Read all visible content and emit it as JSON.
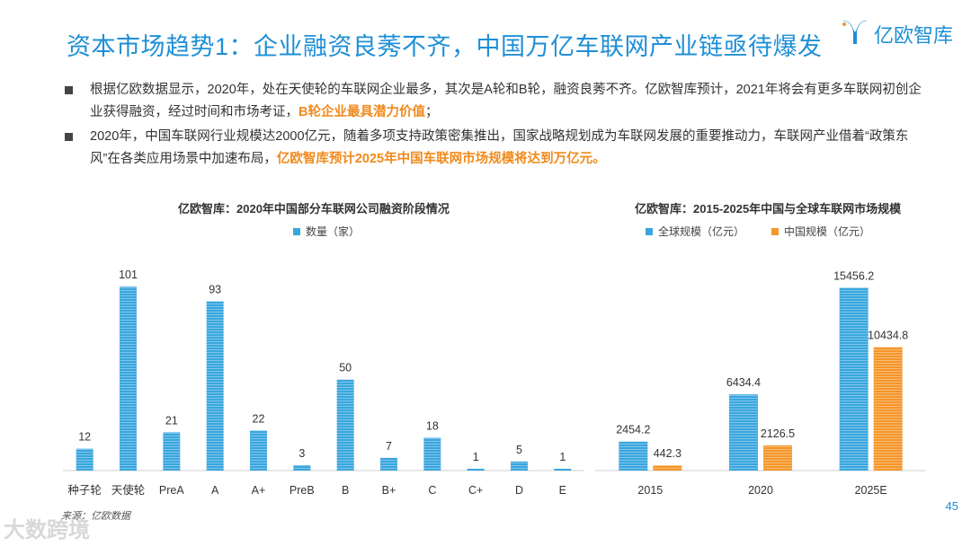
{
  "header": {
    "title": "资本市场趋势1：企业融资良莠不齐，中国万亿车联网产业链亟待爆发",
    "logo_text": "亿欧智库"
  },
  "bullets": [
    {
      "pre": "根据亿欧数据显示，2020年，处在天使轮的车联网企业最多，其次是A轮和B轮，融资良莠不齐。亿欧智库预计，2021年将会有更多车联网初创企业获得融资，经过时间和市场考证，",
      "highlight": "B轮企业最具潜力价值",
      "post": "；"
    },
    {
      "pre": "2020年，中国车联网行业规模达2000亿元，随着多项支持政策密集推出，国家战略规划成为车联网发展的重要推动力，车联网产业借着“政策东风”在各类应用场景中加速布局，",
      "highlight": "亿欧智库预计2025年中国车联网市场规模将达到万亿元。",
      "post": ""
    }
  ],
  "chart_data": [
    {
      "type": "bar",
      "title": "亿欧智库：2020年中国部分车联网公司融资阶段情况",
      "categories": [
        "种子轮",
        "天使轮",
        "PreA",
        "A",
        "A+",
        "PreB",
        "B",
        "B+",
        "C",
        "C+",
        "D",
        "E"
      ],
      "series": [
        {
          "name": "数量（家）",
          "values": [
            12,
            101,
            21,
            93,
            22,
            3,
            50,
            7,
            18,
            1,
            5,
            1
          ],
          "color": "#3aa6de"
        }
      ],
      "ylim": [
        0,
        110
      ],
      "grid": false,
      "legend": "top-left"
    },
    {
      "type": "bar",
      "title": "亿欧智库：2015-2025年中国与全球车联网市场规模",
      "categories": [
        "2015",
        "2020",
        "2025E"
      ],
      "series": [
        {
          "name": "全球规模（亿元）",
          "values": [
            2454.2,
            6434.4,
            15456.2
          ],
          "color": "#3aa6de"
        },
        {
          "name": "中国规模（亿元）",
          "values": [
            442.3,
            2126.5,
            10434.8
          ],
          "color": "#f5962a"
        }
      ],
      "ylim": [
        0,
        17000
      ],
      "grid": false,
      "legend": "top-left"
    }
  ],
  "footer": {
    "source": "来源：亿欧数据",
    "watermark": "大数跨境",
    "page_number": "45"
  }
}
